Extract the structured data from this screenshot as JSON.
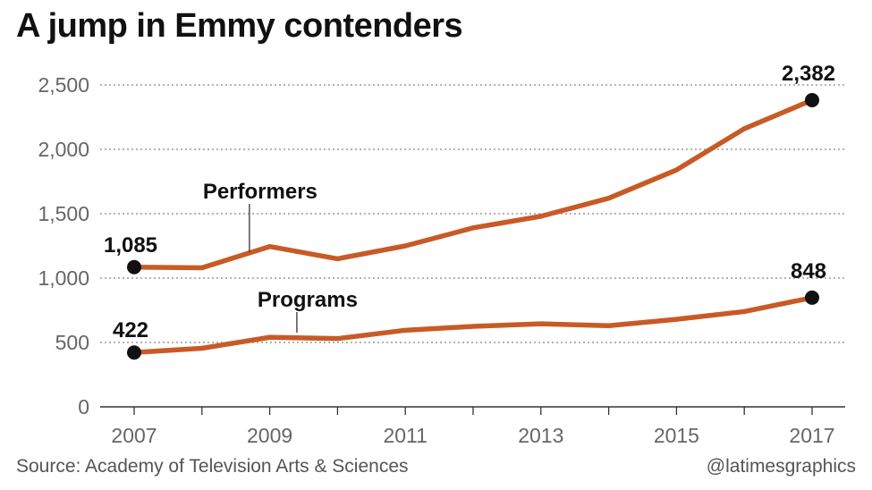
{
  "chart_data": {
    "type": "line",
    "title": "A jump in Emmy contenders",
    "x": [
      2007,
      2008,
      2009,
      2010,
      2011,
      2012,
      2013,
      2014,
      2015,
      2016,
      2017
    ],
    "x_tick_labels": [
      "2007",
      "2009",
      "2011",
      "2013",
      "2015",
      "2017"
    ],
    "y_tick_labels": [
      "0",
      "500",
      "1,000",
      "1,500",
      "2,000",
      "2,500"
    ],
    "ylim": [
      0,
      2500
    ],
    "xlim": [
      2007,
      2017
    ],
    "grid": "horizontal dotted",
    "series": [
      {
        "name": "Performers",
        "values": [
          1085,
          1080,
          1245,
          1150,
          1250,
          1390,
          1480,
          1620,
          1840,
          2160,
          2382
        ],
        "start_label": "1,085",
        "end_label": "2,382"
      },
      {
        "name": "Programs",
        "values": [
          422,
          455,
          540,
          530,
          595,
          625,
          645,
          630,
          680,
          740,
          848
        ],
        "start_label": "422",
        "end_label": "848"
      }
    ],
    "source": "Source: Academy of Television Arts & Sciences",
    "credit": "@latimesgraphics",
    "colors": {
      "line": "#c85a26",
      "marker": "#111111",
      "grid": "#9a9a9a",
      "axis_text": "#666666"
    }
  }
}
